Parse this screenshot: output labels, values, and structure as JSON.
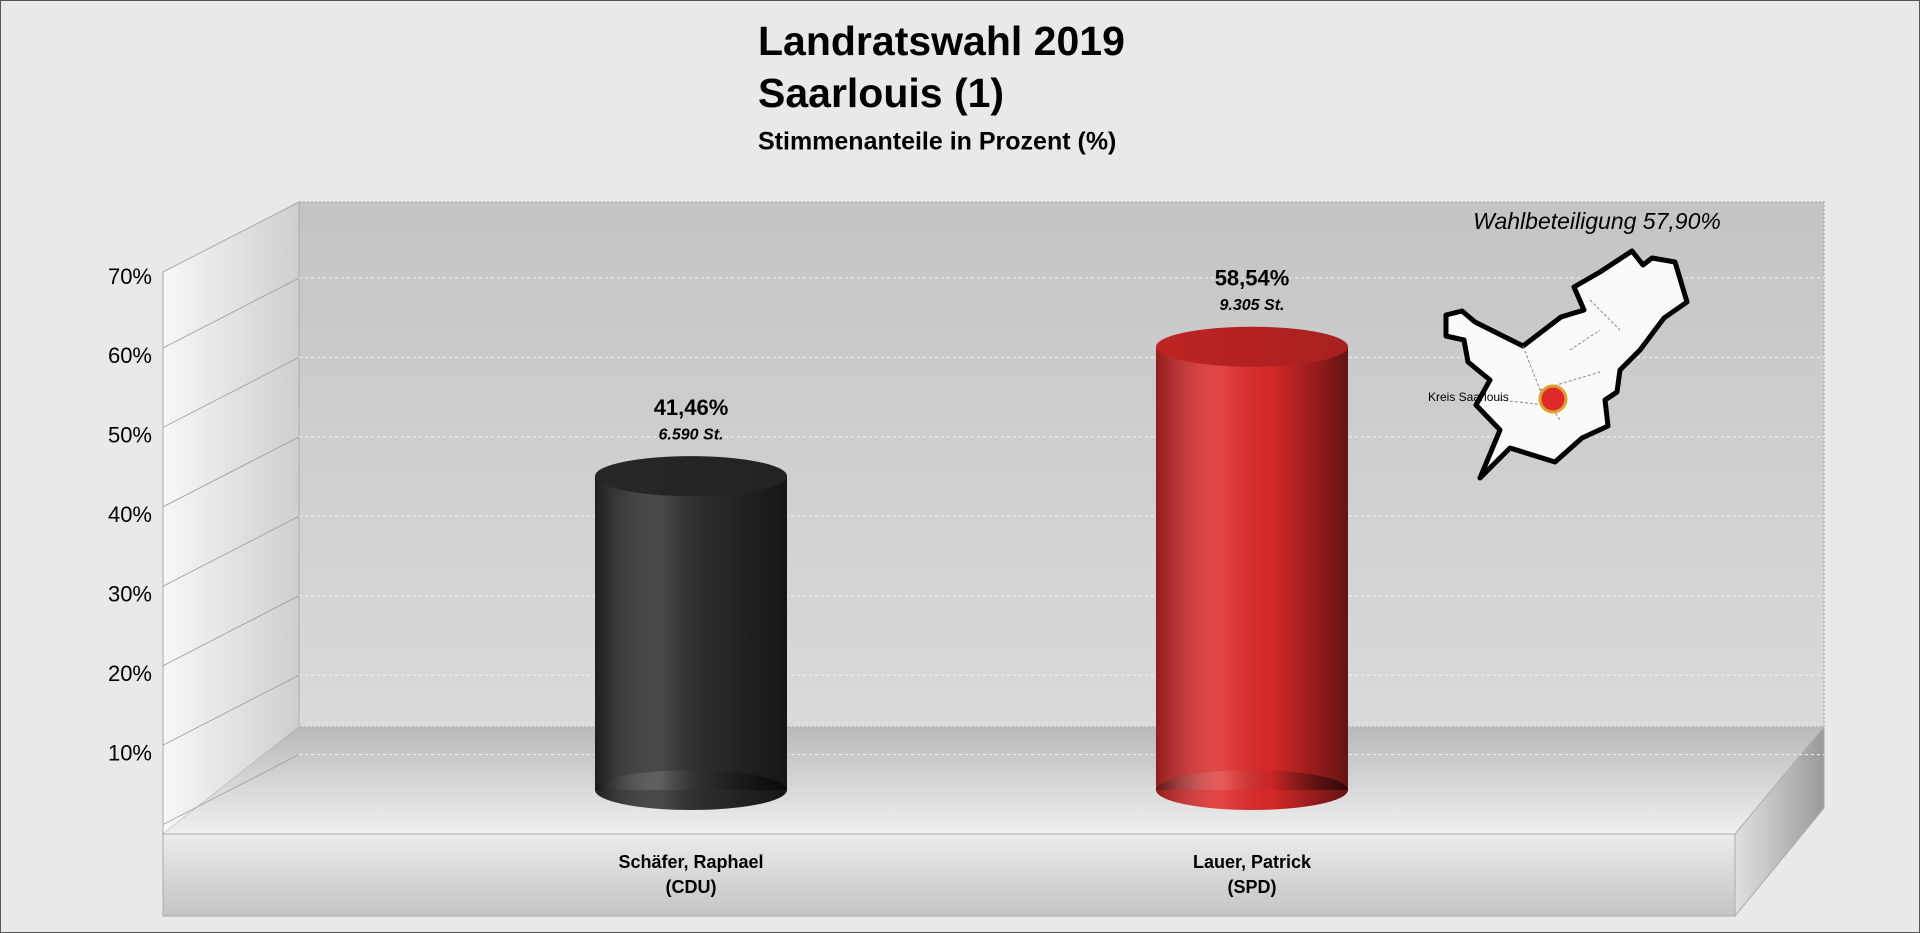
{
  "chart_data": {
    "type": "bar",
    "title": "Landratswahl 2019",
    "subtitle": "Saarlouis (1)",
    "description": "Stimmenanteile in Prozent (%)",
    "annotation": "Wahlbeteiligung 57,90%",
    "map_label": "Kreis Saarlouis",
    "categories": [
      "Schäfer, Raphael",
      "Lauer, Patrick"
    ],
    "parties": [
      "(CDU)",
      "(SPD)"
    ],
    "values": [
      41.46,
      58.54
    ],
    "value_labels": [
      "41,46%",
      "58,54%"
    ],
    "votes": [
      "6.590 St.",
      "9.305 St."
    ],
    "colors": [
      "#2e2e2e",
      "#e02a2a"
    ],
    "ylim": [
      0,
      70
    ],
    "yticks": [
      {
        "value": 10,
        "label": "10%"
      },
      {
        "value": 20,
        "label": "20%"
      },
      {
        "value": 30,
        "label": "30%"
      },
      {
        "value": 40,
        "label": "40%"
      },
      {
        "value": 50,
        "label": "50%"
      },
      {
        "value": 60,
        "label": "60%"
      },
      {
        "value": 70,
        "label": "70%"
      }
    ],
    "grid": true
  }
}
